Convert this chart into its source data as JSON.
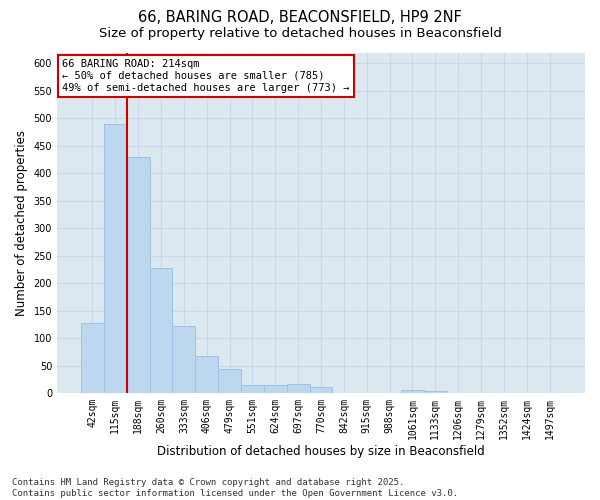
{
  "title_line1": "66, BARING ROAD, BEACONSFIELD, HP9 2NF",
  "title_line2": "Size of property relative to detached houses in Beaconsfield",
  "xlabel": "Distribution of detached houses by size in Beaconsfield",
  "ylabel": "Number of detached properties",
  "categories": [
    "42sqm",
    "115sqm",
    "188sqm",
    "260sqm",
    "333sqm",
    "406sqm",
    "479sqm",
    "551sqm",
    "624sqm",
    "697sqm",
    "770sqm",
    "842sqm",
    "915sqm",
    "988sqm",
    "1061sqm",
    "1133sqm",
    "1206sqm",
    "1279sqm",
    "1352sqm",
    "1424sqm",
    "1497sqm"
  ],
  "values": [
    127,
    490,
    430,
    228,
    122,
    68,
    44,
    14,
    14,
    16,
    11,
    0,
    0,
    0,
    6,
    3,
    0,
    0,
    0,
    0,
    0
  ],
  "bar_color": "#bdd7ee",
  "bar_edge_color": "#9dc3e6",
  "vline_color": "#cc0000",
  "annotation_text": "66 BARING ROAD: 214sqm\n← 50% of detached houses are smaller (785)\n49% of semi-detached houses are larger (773) →",
  "annotation_box_color": "#ffffff",
  "annotation_box_edge": "#cc0000",
  "grid_color": "#c8d8e8",
  "background_color": "#dce8f0",
  "ylim": [
    0,
    620
  ],
  "yticks": [
    0,
    50,
    100,
    150,
    200,
    250,
    300,
    350,
    400,
    450,
    500,
    550,
    600
  ],
  "footer": "Contains HM Land Registry data © Crown copyright and database right 2025.\nContains public sector information licensed under the Open Government Licence v3.0.",
  "title_fontsize": 10.5,
  "subtitle_fontsize": 9.5,
  "tick_fontsize": 7,
  "label_fontsize": 8.5,
  "footer_fontsize": 6.5
}
